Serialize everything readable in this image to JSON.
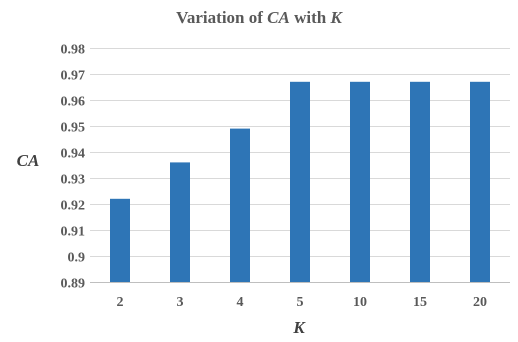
{
  "chart_data": {
    "type": "bar",
    "title": {
      "prefix": "Variation of ",
      "var1": "CA",
      "middle": " with ",
      "var2": "K"
    },
    "xlabel": "K",
    "ylabel": "CA",
    "categories": [
      "2",
      "3",
      "4",
      "5",
      "10",
      "15",
      "20"
    ],
    "values": [
      0.922,
      0.936,
      0.949,
      0.967,
      0.967,
      0.967,
      0.967
    ],
    "ylim": [
      0.89,
      0.98
    ],
    "yticks": [
      0.89,
      0.9,
      0.91,
      0.92,
      0.93,
      0.94,
      0.95,
      0.96,
      0.97,
      0.98
    ],
    "ytick_labels": [
      "0.89",
      "0.9",
      "0.91",
      "0.92",
      "0.93",
      "0.94",
      "0.95",
      "0.96",
      "0.97",
      "0.98"
    ],
    "grid": true,
    "legend": "none",
    "bar_color": "#2e75b6"
  }
}
